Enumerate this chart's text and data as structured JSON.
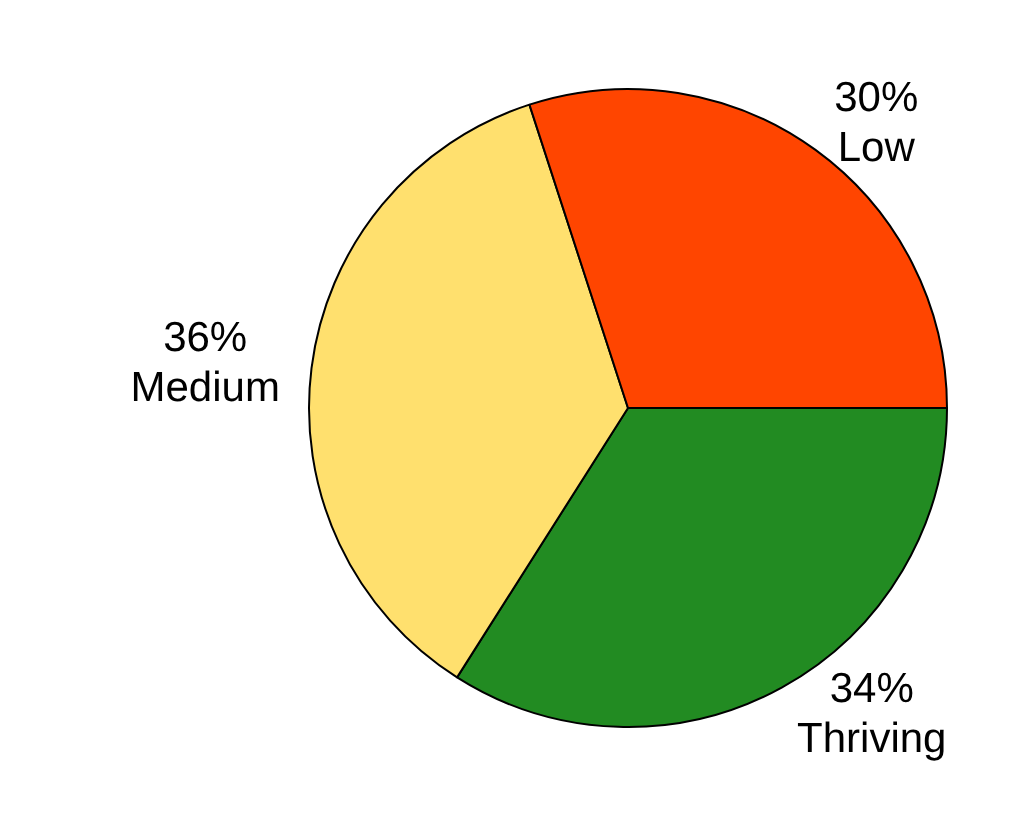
{
  "chart_data": {
    "type": "pie",
    "categories": [
      "Thriving",
      "Medium",
      "Low"
    ],
    "values": [
      34,
      36,
      30
    ],
    "colors": [
      "#228b22",
      "#ffe06e",
      "#ff4500"
    ],
    "value_labels": [
      "34%",
      "36%",
      "30%"
    ],
    "legend": false
  }
}
